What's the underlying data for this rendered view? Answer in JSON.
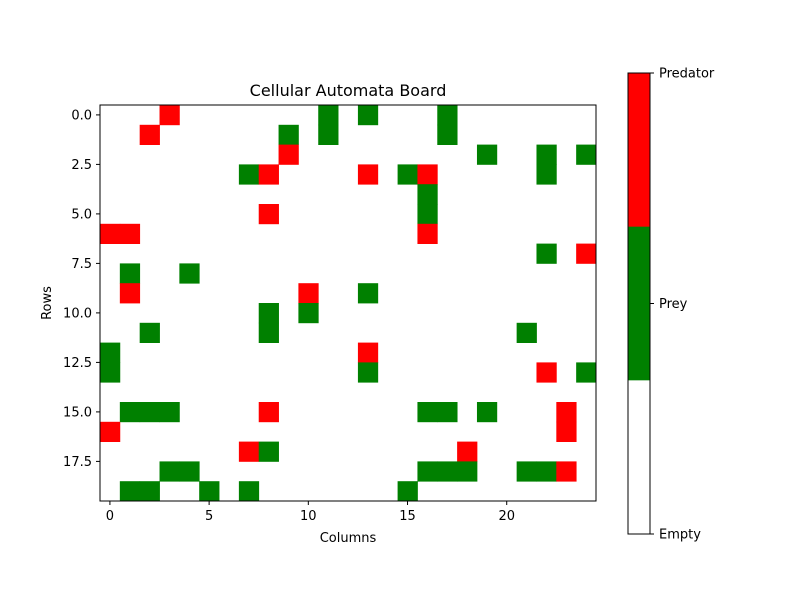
{
  "chart_data": {
    "type": "heatmap",
    "title": "Cellular Automata Board",
    "xlabel": "Columns",
    "ylabel": "Rows",
    "n_rows": 20,
    "n_cols": 25,
    "x_ticks": [
      0,
      5,
      10,
      15,
      20
    ],
    "x_tick_labels": [
      "0",
      "5",
      "10",
      "15",
      "20"
    ],
    "y_ticks": [
      0,
      2.5,
      5,
      7.5,
      10,
      12.5,
      15,
      17.5
    ],
    "y_tick_labels": [
      "0.0",
      "2.5",
      "5.0",
      "7.5",
      "10.0",
      "12.5",
      "15.0",
      "17.5"
    ],
    "states": [
      {
        "value": 0,
        "label": "Empty",
        "color": "#ffffff"
      },
      {
        "value": 1,
        "label": "Prey",
        "color": "#008000"
      },
      {
        "value": 2,
        "label": "Predator",
        "color": "#ff0000"
      }
    ],
    "colorbar_labels": [
      "Predator",
      "Prey",
      "Empty"
    ],
    "grid": [
      [
        0,
        0,
        0,
        2,
        0,
        0,
        0,
        0,
        0,
        0,
        0,
        1,
        0,
        1,
        0,
        0,
        0,
        1,
        0,
        0,
        0,
        0,
        0,
        0,
        0
      ],
      [
        0,
        0,
        2,
        0,
        0,
        0,
        0,
        0,
        0,
        1,
        0,
        1,
        0,
        0,
        0,
        0,
        0,
        1,
        0,
        0,
        0,
        0,
        0,
        0,
        0
      ],
      [
        0,
        0,
        0,
        0,
        0,
        0,
        0,
        0,
        0,
        2,
        0,
        0,
        0,
        0,
        0,
        0,
        0,
        0,
        0,
        1,
        0,
        0,
        1,
        0,
        1
      ],
      [
        0,
        0,
        0,
        0,
        0,
        0,
        0,
        1,
        2,
        0,
        0,
        0,
        0,
        2,
        0,
        1,
        2,
        0,
        0,
        0,
        0,
        0,
        1,
        0,
        0
      ],
      [
        0,
        0,
        0,
        0,
        0,
        0,
        0,
        0,
        0,
        0,
        0,
        0,
        0,
        0,
        0,
        0,
        1,
        0,
        0,
        0,
        0,
        0,
        0,
        0,
        0
      ],
      [
        0,
        0,
        0,
        0,
        0,
        0,
        0,
        0,
        2,
        0,
        0,
        0,
        0,
        0,
        0,
        0,
        1,
        0,
        0,
        0,
        0,
        0,
        0,
        0,
        0
      ],
      [
        2,
        2,
        0,
        0,
        0,
        0,
        0,
        0,
        0,
        0,
        0,
        0,
        0,
        0,
        0,
        0,
        2,
        0,
        0,
        0,
        0,
        0,
        0,
        0,
        0
      ],
      [
        0,
        0,
        0,
        0,
        0,
        0,
        0,
        0,
        0,
        0,
        0,
        0,
        0,
        0,
        0,
        0,
        0,
        0,
        0,
        0,
        0,
        0,
        1,
        0,
        2
      ],
      [
        0,
        1,
        0,
        0,
        1,
        0,
        0,
        0,
        0,
        0,
        0,
        0,
        0,
        0,
        0,
        0,
        0,
        0,
        0,
        0,
        0,
        0,
        0,
        0,
        0
      ],
      [
        0,
        2,
        0,
        0,
        0,
        0,
        0,
        0,
        0,
        0,
        2,
        0,
        0,
        1,
        0,
        0,
        0,
        0,
        0,
        0,
        0,
        0,
        0,
        0,
        0
      ],
      [
        0,
        0,
        0,
        0,
        0,
        0,
        0,
        0,
        1,
        0,
        1,
        0,
        0,
        0,
        0,
        0,
        0,
        0,
        0,
        0,
        0,
        0,
        0,
        0,
        0
      ],
      [
        0,
        0,
        1,
        0,
        0,
        0,
        0,
        0,
        1,
        0,
        0,
        0,
        0,
        0,
        0,
        0,
        0,
        0,
        0,
        0,
        0,
        1,
        0,
        0,
        0
      ],
      [
        1,
        0,
        0,
        0,
        0,
        0,
        0,
        0,
        0,
        0,
        0,
        0,
        0,
        2,
        0,
        0,
        0,
        0,
        0,
        0,
        0,
        0,
        0,
        0,
        0
      ],
      [
        1,
        0,
        0,
        0,
        0,
        0,
        0,
        0,
        0,
        0,
        0,
        0,
        0,
        1,
        0,
        0,
        0,
        0,
        0,
        0,
        0,
        0,
        2,
        0,
        1
      ],
      [
        0,
        0,
        0,
        0,
        0,
        0,
        0,
        0,
        0,
        0,
        0,
        0,
        0,
        0,
        0,
        0,
        0,
        0,
        0,
        0,
        0,
        0,
        0,
        0,
        0
      ],
      [
        0,
        1,
        1,
        1,
        0,
        0,
        0,
        0,
        2,
        0,
        0,
        0,
        0,
        0,
        0,
        0,
        1,
        1,
        0,
        1,
        0,
        0,
        0,
        2,
        0
      ],
      [
        2,
        0,
        0,
        0,
        0,
        0,
        0,
        0,
        0,
        0,
        0,
        0,
        0,
        0,
        0,
        0,
        0,
        0,
        0,
        0,
        0,
        0,
        0,
        2,
        0
      ],
      [
        0,
        0,
        0,
        0,
        0,
        0,
        0,
        2,
        1,
        0,
        0,
        0,
        0,
        0,
        0,
        0,
        0,
        0,
        2,
        0,
        0,
        0,
        0,
        0,
        0
      ],
      [
        0,
        0,
        0,
        1,
        1,
        0,
        0,
        0,
        0,
        0,
        0,
        0,
        0,
        0,
        0,
        0,
        1,
        1,
        1,
        0,
        0,
        1,
        1,
        2,
        0
      ],
      [
        0,
        1,
        1,
        0,
        0,
        1,
        0,
        1,
        0,
        0,
        0,
        0,
        0,
        0,
        0,
        1,
        0,
        0,
        0,
        0,
        0,
        0,
        0,
        0,
        0
      ]
    ]
  }
}
